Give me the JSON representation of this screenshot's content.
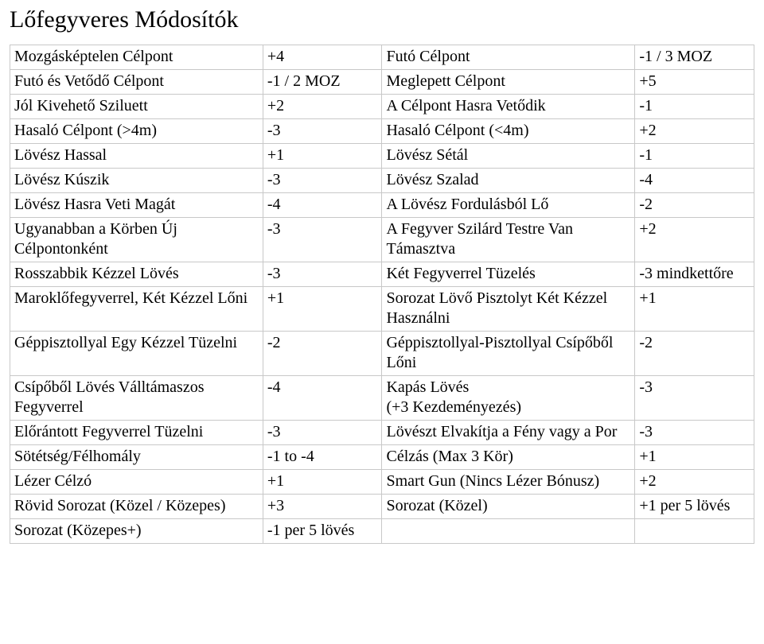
{
  "title": "Lőfegyveres Módosítók",
  "table": {
    "border_color": "#c8c8c8",
    "background_color": "#ffffff",
    "text_color": "#000000",
    "font_family": "Times New Roman",
    "title_fontsize": 30,
    "cell_fontsize": 20,
    "columns": [
      {
        "width_pct": 34
      },
      {
        "width_pct": 16
      },
      {
        "width_pct": 34
      },
      {
        "width_pct": 16
      }
    ],
    "rows": [
      [
        "Mozgásképtelen Célpont",
        "+4",
        "Futó Célpont",
        "-1 / 3 MOZ"
      ],
      [
        "Futó és Vetődő Célpont",
        "-1 / 2 MOZ",
        "Meglepett Célpont",
        "+5"
      ],
      [
        "Jól Kivehető Sziluett",
        "+2",
        "A Célpont Hasra Vetődik",
        "-1"
      ],
      [
        "Hasaló Célpont (>4m)",
        "-3",
        "Hasaló Célpont (<4m)",
        "+2"
      ],
      [
        "Lövész Hassal",
        "+1",
        "Lövész Sétál",
        "-1"
      ],
      [
        "Lövész Kúszik",
        "-3",
        "Lövész Szalad",
        "-4"
      ],
      [
        "Lövész Hasra Veti Magát",
        "-4",
        "A Lövész Fordulásból Lő",
        "-2"
      ],
      [
        "Ugyanabban a Körben Új Célpontonként",
        "-3",
        "A Fegyver Szilárd Testre Van Támasztva",
        "+2"
      ],
      [
        "Rosszabbik Kézzel Lövés",
        "-3",
        "Két Fegyverrel Tüzelés",
        "-3 mindkettőre"
      ],
      [
        "Maroklőfegyverrel, Két Kézzel Lőni",
        "+1",
        "Sorozat Lövő Pisztolyt Két Kézzel Használni",
        "+1"
      ],
      [
        "Géppisztollyal Egy Kézzel Tüzelni",
        "-2",
        "Géppisztollyal-Pisztollyal Csípőből Lőni",
        "-2"
      ],
      [
        "Csípőből Lövés Válltámaszos Fegyverrel",
        "-4",
        "Kapás Lövés\n(+3 Kezdeményezés)",
        "-3"
      ],
      [
        "Előrántott Fegyverrel Tüzelni",
        "-3",
        "Lövészt Elvakítja a Fény vagy a Por",
        "-3"
      ],
      [
        "Sötétség/Félhomály",
        "-1 to -4",
        "Célzás (Max 3 Kör)",
        "+1"
      ],
      [
        "Lézer Célzó",
        "+1",
        "Smart Gun (Nincs Lézer Bónusz)",
        "+2"
      ],
      [
        "Rövid Sorozat (Közel / Közepes)",
        "+3",
        "Sorozat (Közel)",
        "+1 per 5 lövés"
      ],
      [
        "Sorozat (Közepes+)",
        "-1 per 5 lövés",
        "",
        ""
      ]
    ]
  }
}
